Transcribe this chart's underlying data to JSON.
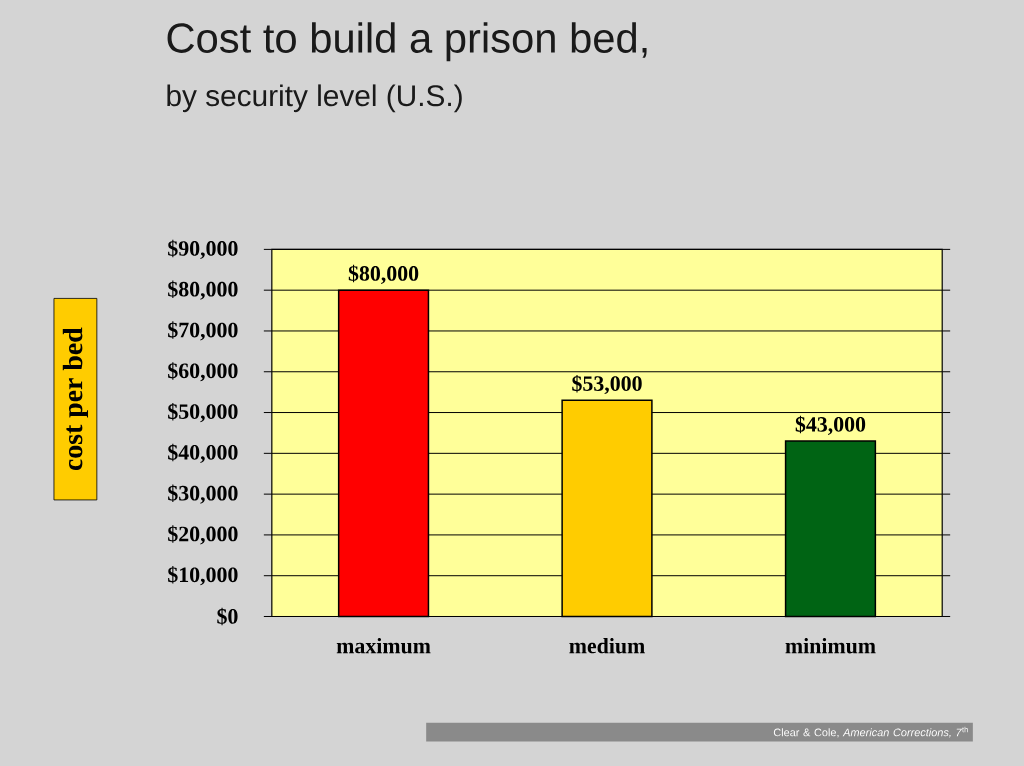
{
  "chart_data": {
    "type": "bar",
    "title": "Cost to build a prison bed,",
    "subtitle": "by security level (U.S.)",
    "ylabel": "cost per bed",
    "categories": [
      "maximum",
      "medium",
      "minimum"
    ],
    "values": [
      80000,
      53000,
      43000
    ],
    "colors": [
      "#ff0000",
      "#ffcc00",
      "#006414"
    ],
    "value_labels": [
      "$80,000",
      "$53,000",
      "$43,000"
    ],
    "ylim": [
      0,
      90000
    ],
    "yticks": [
      {
        "value": 0,
        "label": "$0"
      },
      {
        "value": 10000,
        "label": "$10,000"
      },
      {
        "value": 20000,
        "label": "$20,000"
      },
      {
        "value": 30000,
        "label": "$30,000"
      },
      {
        "value": 40000,
        "label": "$40,000"
      },
      {
        "value": 50000,
        "label": "$50,000"
      },
      {
        "value": 60000,
        "label": "$60,000"
      },
      {
        "value": 70000,
        "label": "$70,000"
      },
      {
        "value": 80000,
        "label": "$80,000"
      },
      {
        "value": 90000,
        "label": "$90,000"
      }
    ],
    "grid": "y",
    "annotations": [
      "Clear & Cole, *American Corrections, 7*$^{th}$"
    ]
  }
}
